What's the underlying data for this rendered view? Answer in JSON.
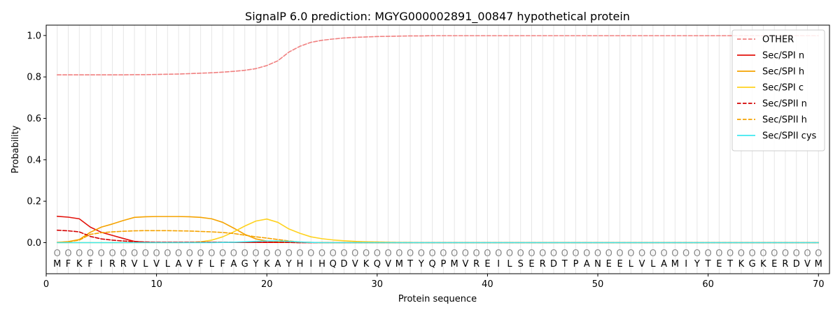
{
  "chart_data": {
    "type": "line",
    "title": "SignalP 6.0 prediction: MGYG000002891_00847 hypothetical protein",
    "xlabel": "Protein sequence",
    "ylabel": "Probability",
    "xlim": [
      0,
      71
    ],
    "ylim": [
      -0.15,
      1.05
    ],
    "xticks": [
      0,
      10,
      20,
      30,
      40,
      50,
      60,
      70
    ],
    "yticks": [
      0.0,
      0.2,
      0.4,
      0.6,
      0.8,
      1.0
    ],
    "ytick_labels": [
      "0.0",
      "0.2",
      "0.4",
      "0.6",
      "0.8",
      "1.0"
    ],
    "grid": "vertical lines at each residue",
    "legend_position": "top-right",
    "sequence": [
      "M",
      "F",
      "K",
      "F",
      "I",
      "R",
      "R",
      "V",
      "L",
      "V",
      "L",
      "A",
      "V",
      "F",
      "L",
      "F",
      "A",
      "G",
      "Y",
      "K",
      "A",
      "Y",
      "H",
      "I",
      "H",
      "Q",
      "D",
      "V",
      "K",
      "Q",
      "V",
      "M",
      "T",
      "Y",
      "Q",
      "P",
      "M",
      "V",
      "R",
      "E",
      "I",
      "L",
      "S",
      "E",
      "R",
      "D",
      "T",
      "P",
      "A",
      "N",
      "E",
      "E",
      "L",
      "V",
      "L",
      "A",
      "M",
      "I",
      "Y",
      "T",
      "E",
      "T",
      "K",
      "G",
      "K",
      "E",
      "R",
      "D",
      "V",
      "M"
    ],
    "position_label": "O",
    "series": [
      {
        "name": "OTHER",
        "color": "#f08080",
        "dash": true,
        "values": [
          0.81,
          0.81,
          0.81,
          0.81,
          0.81,
          0.81,
          0.81,
          0.811,
          0.811,
          0.812,
          0.813,
          0.814,
          0.816,
          0.818,
          0.82,
          0.823,
          0.827,
          0.832,
          0.84,
          0.855,
          0.878,
          0.92,
          0.948,
          0.967,
          0.977,
          0.983,
          0.988,
          0.991,
          0.993,
          0.995,
          0.996,
          0.997,
          0.998,
          0.998,
          0.999,
          0.999,
          0.999,
          0.999,
          0.999,
          0.999,
          0.999,
          0.999,
          0.999,
          0.999,
          0.999,
          0.999,
          0.999,
          0.999,
          0.999,
          0.999,
          0.999,
          0.999,
          0.999,
          0.999,
          0.999,
          0.999,
          0.999,
          0.999,
          0.999,
          0.999,
          0.999,
          0.999,
          0.999,
          0.999,
          0.999,
          0.999,
          0.999,
          0.999,
          0.999,
          0.999
        ]
      },
      {
        "name": "Sec/SPI n",
        "color": "#e3120b",
        "dash": false,
        "values": [
          0.127,
          0.123,
          0.115,
          0.075,
          0.05,
          0.035,
          0.02,
          0.006,
          0.002,
          0.001,
          0.001,
          0.001,
          0.001,
          0.001,
          0.001,
          0.001,
          0.001,
          0.001,
          0.001,
          0.001,
          0.001,
          0.001,
          0,
          0,
          0,
          0,
          0,
          0,
          0,
          0,
          0,
          0,
          0,
          0,
          0,
          0,
          0,
          0,
          0,
          0,
          0,
          0,
          0,
          0,
          0,
          0,
          0,
          0,
          0,
          0,
          0,
          0,
          0,
          0,
          0,
          0,
          0,
          0,
          0,
          0,
          0,
          0,
          0,
          0,
          0,
          0,
          0,
          0,
          0,
          0
        ]
      },
      {
        "name": "Sec/SPI h",
        "color": "#f5a300",
        "dash": false,
        "values": [
          0.001,
          0.005,
          0.015,
          0.05,
          0.075,
          0.09,
          0.107,
          0.122,
          0.125,
          0.126,
          0.126,
          0.126,
          0.125,
          0.122,
          0.115,
          0.098,
          0.07,
          0.04,
          0.018,
          0.008,
          0.004,
          0.002,
          0.001,
          0.001,
          0,
          0,
          0,
          0,
          0,
          0,
          0,
          0,
          0,
          0,
          0,
          0,
          0,
          0,
          0,
          0,
          0,
          0,
          0,
          0,
          0,
          0,
          0,
          0,
          0,
          0,
          0,
          0,
          0,
          0,
          0,
          0,
          0,
          0,
          0,
          0,
          0,
          0,
          0,
          0,
          0,
          0,
          0,
          0,
          0,
          0
        ]
      },
      {
        "name": "Sec/SPI c",
        "color": "#ffd21f",
        "dash": false,
        "values": [
          0,
          0,
          0,
          0,
          0,
          0,
          0,
          0,
          0,
          0,
          0,
          0,
          0.001,
          0.004,
          0.012,
          0.028,
          0.052,
          0.08,
          0.104,
          0.114,
          0.098,
          0.066,
          0.045,
          0.028,
          0.019,
          0.013,
          0.009,
          0.006,
          0.004,
          0.003,
          0.002,
          0.001,
          0.001,
          0,
          0,
          0,
          0,
          0,
          0,
          0,
          0,
          0,
          0,
          0,
          0,
          0,
          0,
          0,
          0,
          0,
          0,
          0,
          0,
          0,
          0,
          0,
          0,
          0,
          0,
          0,
          0,
          0,
          0,
          0,
          0,
          0,
          0,
          0,
          0,
          0
        ]
      },
      {
        "name": "Sec/SPII n",
        "color": "#d40000",
        "dash": true,
        "values": [
          0.06,
          0.057,
          0.052,
          0.03,
          0.018,
          0.012,
          0.008,
          0.005,
          0.003,
          0.002,
          0.002,
          0.002,
          0.002,
          0.002,
          0.002,
          0.002,
          0.002,
          0.002,
          0.002,
          0.002,
          0.001,
          0.001,
          0,
          0,
          0,
          0,
          0,
          0,
          0,
          0,
          0,
          0,
          0,
          0,
          0,
          0,
          0,
          0,
          0,
          0,
          0,
          0,
          0,
          0,
          0,
          0,
          0,
          0,
          0,
          0,
          0,
          0,
          0,
          0,
          0,
          0,
          0,
          0,
          0,
          0,
          0,
          0,
          0,
          0,
          0,
          0,
          0,
          0,
          0,
          0
        ]
      },
      {
        "name": "Sec/SPII h",
        "color": "#f5a300",
        "dash": true,
        "values": [
          0.001,
          0.004,
          0.012,
          0.04,
          0.048,
          0.052,
          0.055,
          0.057,
          0.058,
          0.058,
          0.058,
          0.057,
          0.056,
          0.054,
          0.052,
          0.049,
          0.044,
          0.036,
          0.028,
          0.022,
          0.015,
          0.008,
          0.003,
          0.001,
          0,
          0,
          0,
          0,
          0,
          0,
          0,
          0,
          0,
          0,
          0,
          0,
          0,
          0,
          0,
          0,
          0,
          0,
          0,
          0,
          0,
          0,
          0,
          0,
          0,
          0,
          0,
          0,
          0,
          0,
          0,
          0,
          0,
          0,
          0,
          0,
          0,
          0,
          0,
          0,
          0,
          0,
          0,
          0,
          0,
          0
        ]
      },
      {
        "name": "Sec/SPII cys",
        "color": "#3ee8f0",
        "dash": false,
        "values": [
          0,
          0,
          0,
          0,
          0,
          0,
          0,
          0,
          0,
          0,
          0,
          0,
          0,
          0,
          0,
          0.001,
          0.002,
          0.004,
          0.006,
          0.008,
          0.008,
          0.006,
          0.003,
          0.001,
          0,
          0,
          0,
          0,
          0,
          0,
          0,
          0,
          0,
          0,
          0,
          0,
          0,
          0,
          0,
          0,
          0,
          0,
          0,
          0,
          0,
          0,
          0,
          0,
          0,
          0,
          0,
          0,
          0,
          0,
          0,
          0,
          0,
          0,
          0,
          0,
          0,
          0,
          0,
          0,
          0,
          0,
          0,
          0,
          0,
          0
        ]
      }
    ]
  }
}
